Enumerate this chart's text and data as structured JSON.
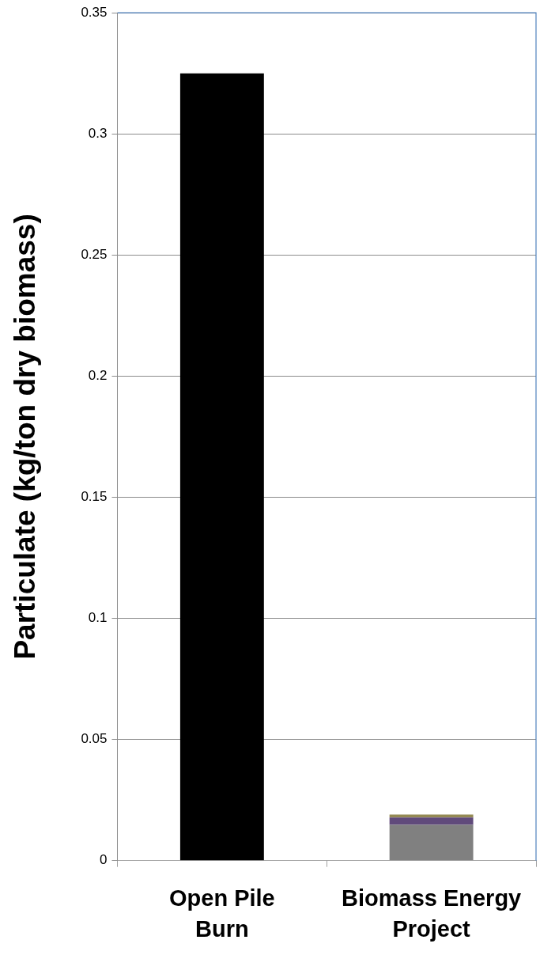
{
  "chart_data": {
    "type": "bar",
    "ylabel": "Particulate (kg/ton dry biomass)",
    "categories": [
      "Open Pile Burn",
      "Biomass Energy Project"
    ],
    "stacked": true,
    "grid": "y",
    "ylim": [
      0,
      0.35
    ],
    "yticks": [
      0,
      0.05,
      0.1,
      0.15,
      0.2,
      0.25,
      0.3,
      0.35
    ],
    "series": [
      {
        "color": "#000000",
        "values": [
          0.325,
          null
        ]
      },
      {
        "color": "#808080",
        "values": [
          null,
          0.0148
        ]
      },
      {
        "color": "#604a7b",
        "values": [
          null,
          0.003
        ]
      },
      {
        "color": "#948a54",
        "values": [
          null,
          0.0012
        ]
      }
    ]
  }
}
